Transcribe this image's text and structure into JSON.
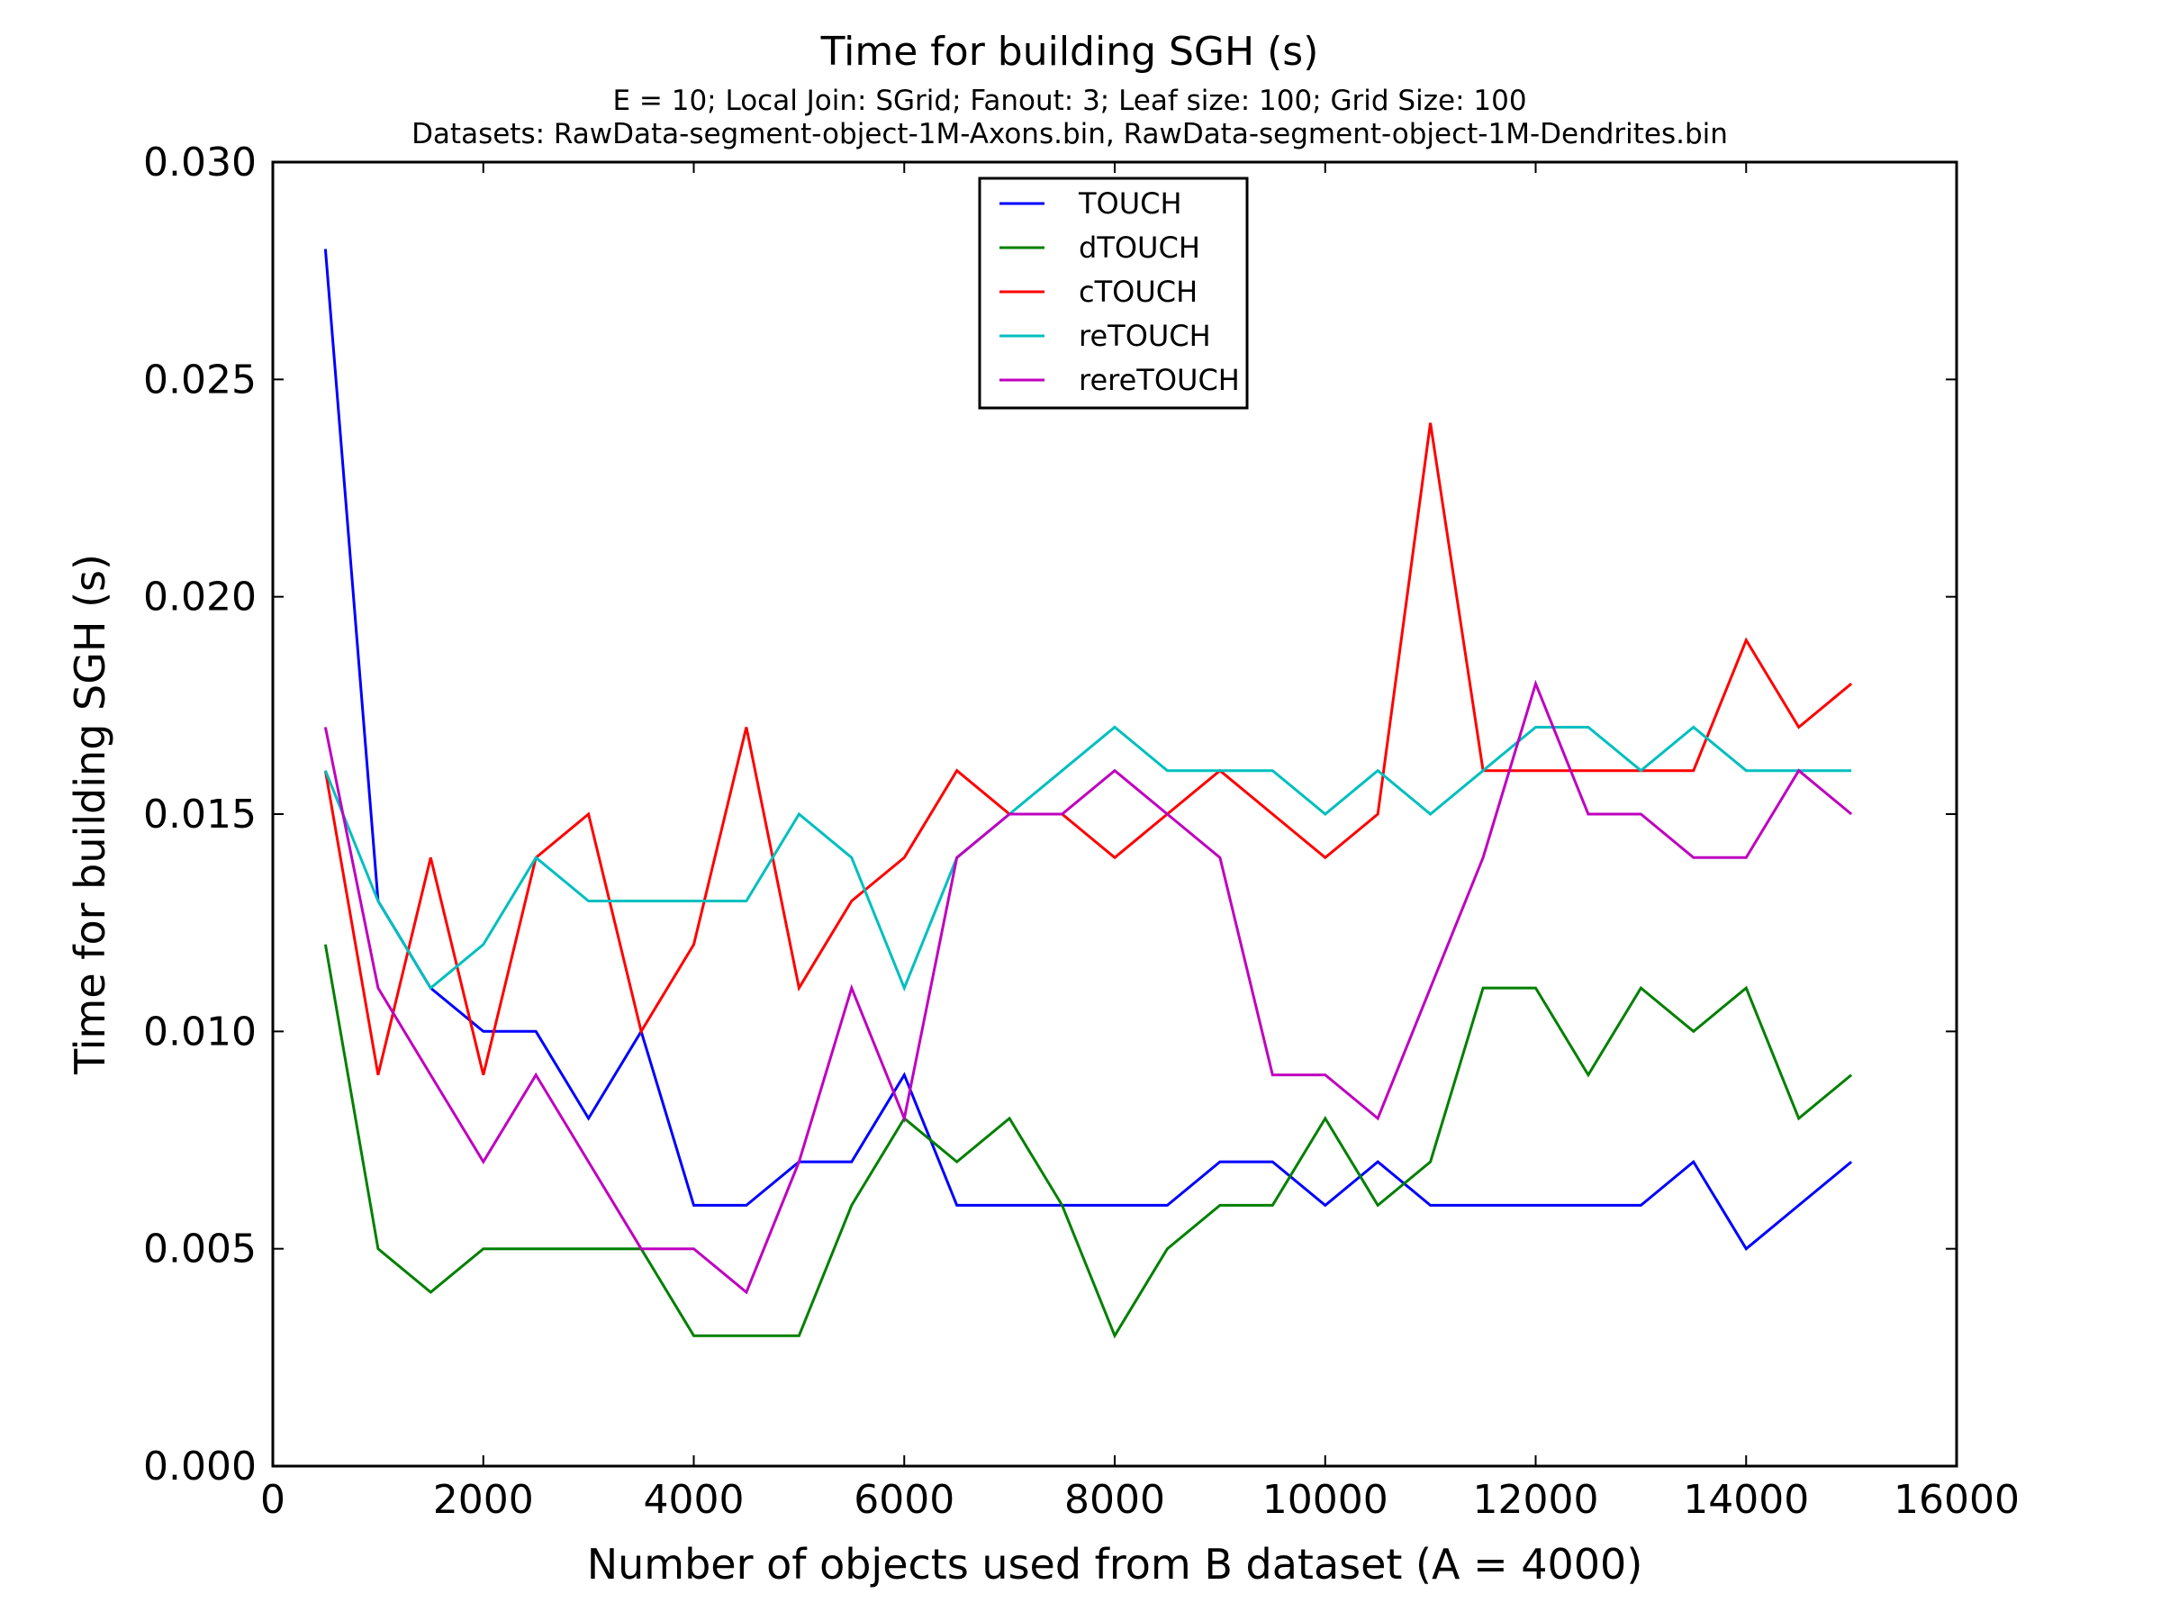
{
  "chart_data": {
    "type": "line",
    "title": "Time for building SGH (s)",
    "subtitle_lines": [
      "E = 10; Local Join: SGrid; Fanout: 3; Leaf size: 100; Grid Size: 100",
      "Datasets: RawData-segment-object-1M-Axons.bin, RawData-segment-object-1M-Dendrites.bin"
    ],
    "xlabel": "Number of objects used from B dataset (A = 4000)",
    "ylabel": "Time for building SGH (s)",
    "xlim": [
      0,
      16000
    ],
    "ylim": [
      0,
      0.03
    ],
    "xticks": [
      0,
      2000,
      4000,
      6000,
      8000,
      10000,
      12000,
      14000,
      16000
    ],
    "xtick_labels": [
      "0",
      "2000",
      "4000",
      "6000",
      "8000",
      "10000",
      "12000",
      "14000",
      "16000"
    ],
    "yticks": [
      0,
      0.005,
      0.01,
      0.015,
      0.02,
      0.025,
      0.03
    ],
    "ytick_labels": [
      "0.000",
      "0.005",
      "0.010",
      "0.015",
      "0.020",
      "0.025",
      "0.030"
    ],
    "grid": false,
    "legend_position": "top-center",
    "x": [
      500,
      1000,
      1500,
      2000,
      2500,
      3000,
      3500,
      4000,
      4500,
      5000,
      5500,
      6000,
      6500,
      7000,
      7500,
      8000,
      8500,
      9000,
      9500,
      10000,
      10500,
      11000,
      11500,
      12000,
      12500,
      13000,
      13500,
      14000,
      14500,
      15000
    ],
    "series": [
      {
        "name": "TOUCH",
        "color": "#0000ff",
        "values": [
          0.028,
          0.013,
          0.011,
          0.01,
          0.01,
          0.008,
          0.01,
          0.006,
          0.006,
          0.007,
          0.007,
          0.009,
          0.006,
          0.006,
          0.006,
          0.006,
          0.006,
          0.007,
          0.007,
          0.006,
          0.007,
          0.006,
          0.006,
          0.006,
          0.006,
          0.006,
          0.007,
          0.005,
          0.006,
          0.007
        ]
      },
      {
        "name": "dTOUCH",
        "color": "#008000",
        "values": [
          0.012,
          0.005,
          0.004,
          0.005,
          0.005,
          0.005,
          0.005,
          0.003,
          0.003,
          0.003,
          0.006,
          0.008,
          0.007,
          0.008,
          0.006,
          0.003,
          0.005,
          0.006,
          0.006,
          0.008,
          0.006,
          0.007,
          0.011,
          0.011,
          0.009,
          0.011,
          0.01,
          0.011,
          0.008,
          0.009
        ]
      },
      {
        "name": "cTOUCH",
        "color": "#ff0000",
        "values": [
          0.016,
          0.009,
          0.014,
          0.009,
          0.014,
          0.015,
          0.01,
          0.012,
          0.017,
          0.011,
          0.013,
          0.014,
          0.016,
          0.015,
          0.015,
          0.014,
          0.015,
          0.016,
          0.015,
          0.014,
          0.015,
          0.024,
          0.016,
          0.016,
          0.016,
          0.016,
          0.016,
          0.019,
          0.017,
          0.018
        ]
      },
      {
        "name": "reTOUCH",
        "color": "#00bfbf",
        "values": [
          0.016,
          0.013,
          0.011,
          0.012,
          0.014,
          0.013,
          0.013,
          0.013,
          0.013,
          0.015,
          0.014,
          0.011,
          0.014,
          0.015,
          0.016,
          0.017,
          0.016,
          0.016,
          0.016,
          0.015,
          0.016,
          0.015,
          0.016,
          0.017,
          0.017,
          0.016,
          0.017,
          0.016,
          0.016,
          0.016
        ]
      },
      {
        "name": "rereTOUCH",
        "color": "#bf00bf",
        "values": [
          0.017,
          0.011,
          0.009,
          0.007,
          0.009,
          0.007,
          0.005,
          0.005,
          0.004,
          0.007,
          0.011,
          0.008,
          0.014,
          0.015,
          0.015,
          0.016,
          0.015,
          0.014,
          0.009,
          0.009,
          0.008,
          0.011,
          0.014,
          0.018,
          0.015,
          0.015,
          0.014,
          0.014,
          0.016,
          0.015
        ]
      }
    ]
  }
}
